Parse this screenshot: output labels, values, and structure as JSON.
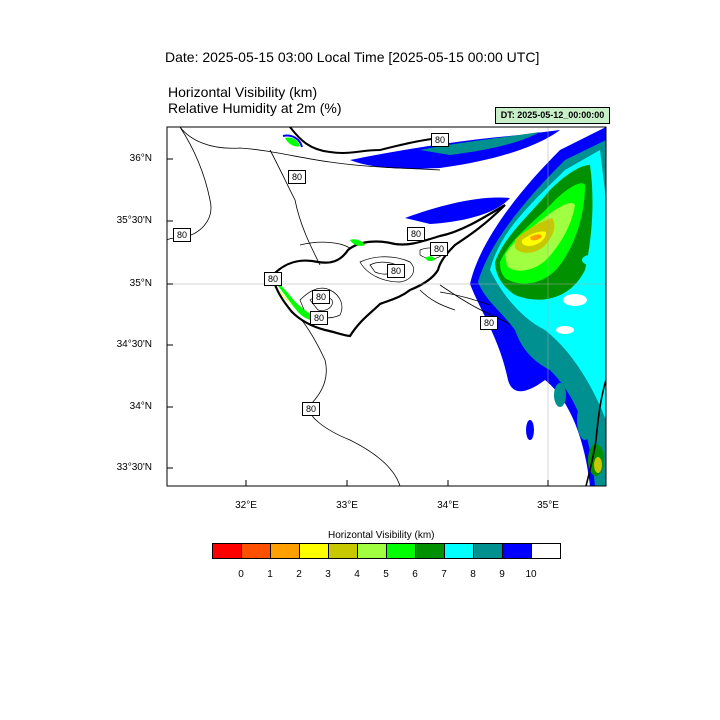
{
  "header": {
    "date_title": "Date: 2025-05-15  03:00 Local Time [2025-05-15  00:00 UTC]",
    "field_line_1": "Horizontal Visibility   (km)",
    "field_line_2": "Relative Humidity at 2m   (%)",
    "dt_badge": "DT: 2025-05-12_00:00:00"
  },
  "map": {
    "lat_labels": [
      "36°N",
      "35°30'N",
      "35°N",
      "34°30'N",
      "34°N",
      "33°30'N"
    ],
    "lon_labels": [
      "32°E",
      "33°E",
      "34°E",
      "35°E"
    ],
    "contour_labels": [
      "80",
      "80",
      "80",
      "80",
      "80",
      "80",
      "80",
      "80",
      "80",
      "80",
      "80",
      "80"
    ]
  },
  "legend": {
    "title": "Horizontal Visibility  (km)",
    "labels": [
      "0",
      "1",
      "2",
      "3",
      "4",
      "5",
      "6",
      "7",
      "8",
      "9",
      "10"
    ],
    "colors": [
      "#ff0000",
      "#ff5000",
      "#ffa000",
      "#ffff00",
      "#c8c800",
      "#a0ff40",
      "#00ff00",
      "#009000",
      "#00ffff",
      "#009090",
      "#0000ff",
      "#ffffff"
    ]
  },
  "colors": {
    "badge_bg": "#c8f0c8"
  }
}
